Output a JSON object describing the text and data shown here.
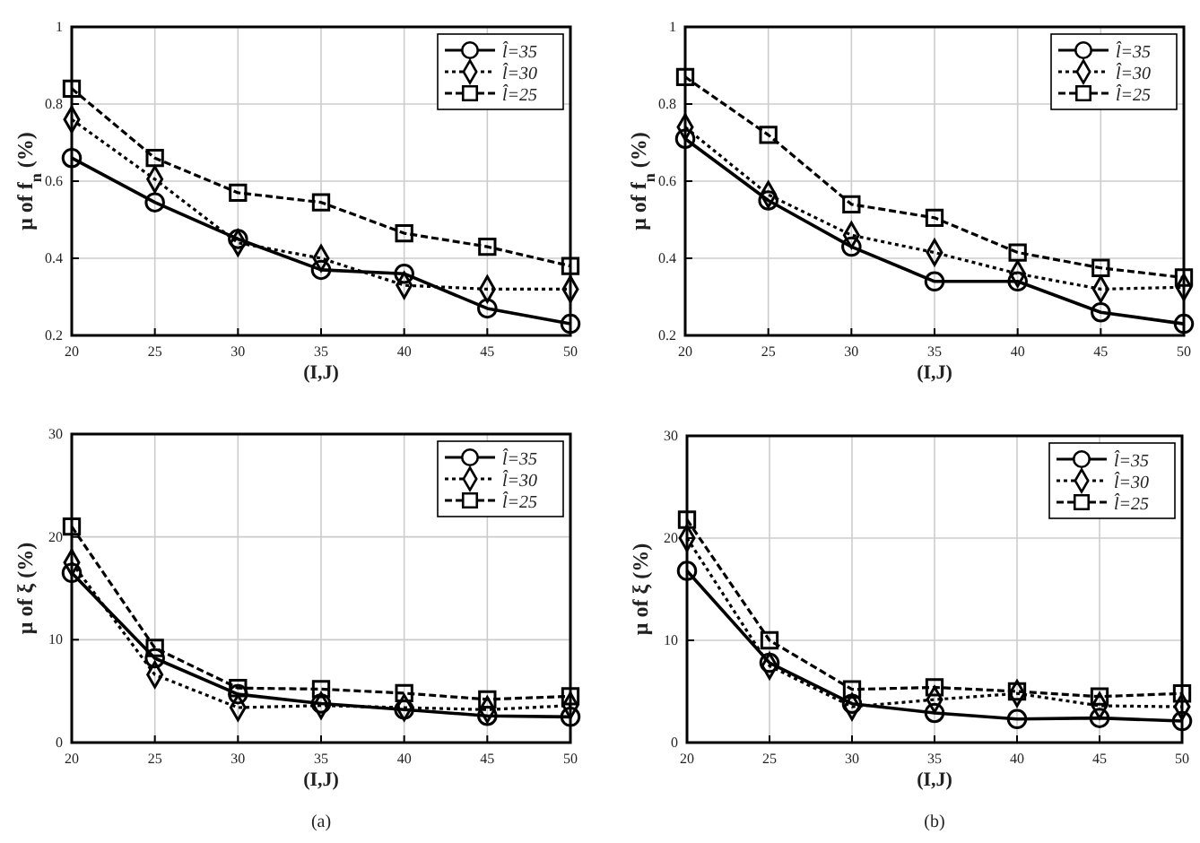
{
  "chart_data": [
    {
      "type": "line",
      "x": [
        20,
        25,
        30,
        35,
        40,
        45,
        50
      ],
      "xlabel": "(I,J)",
      "ylabel": "μ of f$_{n}$ (%)",
      "xlim": [
        20,
        50
      ],
      "xticks": [
        20,
        25,
        30,
        35,
        40,
        45,
        50
      ],
      "ylim": [
        0.2,
        1
      ],
      "yticks": [
        0.2,
        0.4,
        0.6,
        0.8,
        1
      ],
      "grid": true,
      "legend": "top right",
      "series": [
        {
          "name": "l̂=35",
          "color": "#000000",
          "marker": "circle",
          "line_style": "solid",
          "values": [
            0.66,
            0.545,
            0.45,
            0.37,
            0.36,
            0.27,
            0.23
          ]
        },
        {
          "name": "l̂=30",
          "color": "#000000",
          "marker": "diamond",
          "line_style": "dotted",
          "values": [
            0.76,
            0.605,
            0.44,
            0.4,
            0.33,
            0.32,
            0.32
          ]
        },
        {
          "name": "l̂=25",
          "color": "#000000",
          "marker": "square",
          "line_style": "dashed",
          "values": [
            0.84,
            0.66,
            0.57,
            0.545,
            0.465,
            0.43,
            0.38
          ]
        }
      ]
    },
    {
      "type": "line",
      "x": [
        20,
        25,
        30,
        35,
        40,
        45,
        50
      ],
      "xlabel": "(I,J)",
      "ylabel": "μ of f$_{n}$ (%)",
      "xlim": [
        20,
        50
      ],
      "xticks": [
        20,
        25,
        30,
        35,
        40,
        45,
        50
      ],
      "ylim": [
        0.2,
        1
      ],
      "yticks": [
        0.2,
        0.4,
        0.6,
        0.8,
        1
      ],
      "grid": true,
      "legend": "top right",
      "series": [
        {
          "name": "l̂=35",
          "color": "#000000",
          "marker": "circle",
          "line_style": "solid",
          "values": [
            0.71,
            0.55,
            0.43,
            0.34,
            0.34,
            0.26,
            0.23
          ]
        },
        {
          "name": "l̂=30",
          "color": "#000000",
          "marker": "diamond",
          "line_style": "dotted",
          "values": [
            0.74,
            0.565,
            0.46,
            0.415,
            0.36,
            0.32,
            0.325
          ]
        },
        {
          "name": "l̂=25",
          "color": "#000000",
          "marker": "square",
          "line_style": "dashed",
          "values": [
            0.87,
            0.72,
            0.54,
            0.505,
            0.415,
            0.375,
            0.35
          ]
        }
      ]
    },
    {
      "type": "line",
      "x": [
        20,
        25,
        30,
        35,
        40,
        45,
        50
      ],
      "xlabel": "(I,J)",
      "ylabel": "μ of ξ (%)",
      "xlim": [
        20,
        50
      ],
      "xticks": [
        20,
        25,
        30,
        35,
        40,
        45,
        50
      ],
      "ylim": [
        0,
        30
      ],
      "yticks": [
        0,
        10,
        20,
        30
      ],
      "grid": true,
      "legend": "top right",
      "annotations": [
        "(a)"
      ],
      "series": [
        {
          "name": "l̂=35",
          "color": "#000000",
          "marker": "circle",
          "line_style": "solid",
          "values": [
            16.5,
            8.2,
            4.7,
            3.8,
            3.2,
            2.6,
            2.5
          ]
        },
        {
          "name": "l̂=30",
          "color": "#000000",
          "marker": "diamond",
          "line_style": "dotted",
          "values": [
            17.5,
            6.6,
            3.4,
            3.6,
            3.4,
            3.2,
            3.6
          ]
        },
        {
          "name": "l̂=25",
          "color": "#000000",
          "marker": "square",
          "line_style": "dashed",
          "values": [
            21,
            9.2,
            5.3,
            5.2,
            4.8,
            4.2,
            4.5
          ]
        }
      ]
    },
    {
      "type": "line",
      "x": [
        20,
        25,
        30,
        35,
        40,
        45,
        50
      ],
      "xlabel": "(I,J)",
      "ylabel": "μ of ξ (%)",
      "xlim": [
        20,
        50
      ],
      "xticks": [
        20,
        25,
        30,
        35,
        40,
        45,
        50
      ],
      "ylim": [
        0,
        30
      ],
      "yticks": [
        0,
        10,
        20,
        30
      ],
      "grid": true,
      "legend": "top right",
      "annotations": [
        "(b)"
      ],
      "series": [
        {
          "name": "l̂=35",
          "color": "#000000",
          "marker": "circle",
          "line_style": "solid",
          "values": [
            16.8,
            7.8,
            3.8,
            2.9,
            2.3,
            2.4,
            2.1
          ]
        },
        {
          "name": "l̂=30",
          "color": "#000000",
          "marker": "diamond",
          "line_style": "dotted",
          "values": [
            20,
            7.5,
            3.5,
            4.2,
            4.8,
            3.6,
            3.5
          ]
        },
        {
          "name": "l̂=25",
          "color": "#000000",
          "marker": "square",
          "line_style": "dashed",
          "values": [
            21.8,
            10,
            5.2,
            5.4,
            5,
            4.5,
            4.8
          ]
        }
      ]
    }
  ]
}
